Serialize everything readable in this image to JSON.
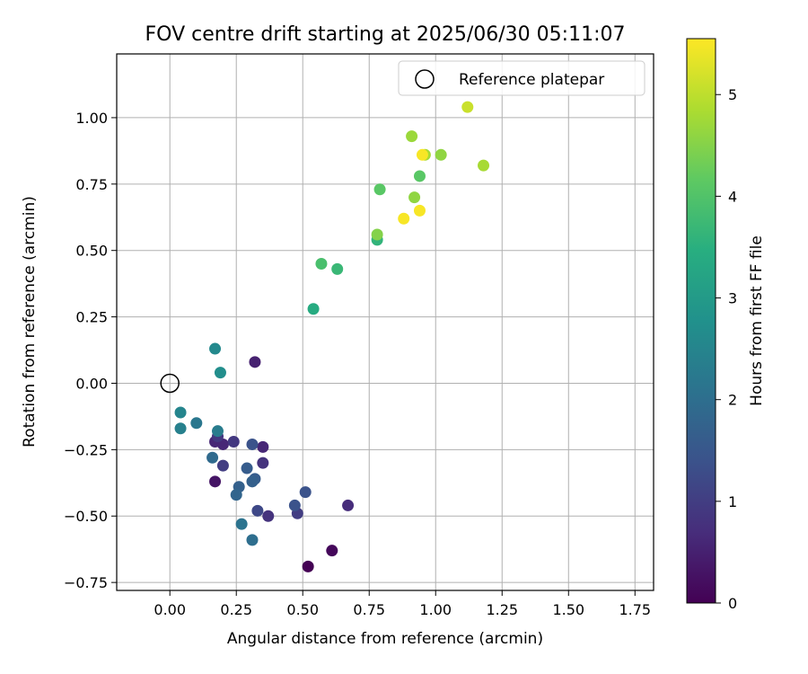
{
  "chart_data": {
    "type": "scatter",
    "title": "FOV centre drift starting at 2025/06/30 05:11:07",
    "xlabel": "Angular distance from reference (arcmin)",
    "ylabel": "Rotation from reference (arcmin)",
    "xlim": [
      -0.2,
      1.82
    ],
    "ylim": [
      -0.78,
      1.24
    ],
    "xticks": [
      "0.00",
      "0.25",
      "0.50",
      "0.75",
      "1.00",
      "1.25",
      "1.50",
      "1.75"
    ],
    "xtick_values": [
      0.0,
      0.25,
      0.5,
      0.75,
      1.0,
      1.25,
      1.5,
      1.75
    ],
    "yticks": [
      "−0.75",
      "−0.50",
      "−0.25",
      "0.00",
      "0.25",
      "0.50",
      "0.75",
      "1.00"
    ],
    "ytick_values": [
      -0.75,
      -0.5,
      -0.25,
      0.0,
      0.25,
      0.5,
      0.75,
      1.0
    ],
    "grid": true,
    "legend": {
      "placement": "top-right",
      "entries": [
        {
          "label": "Reference platepar",
          "marker": "open-circle"
        }
      ]
    },
    "reference_point": {
      "x": 0.0,
      "y": 0.0
    },
    "colorbar": {
      "label": "Hours from first FF file",
      "colormap": "viridis",
      "range": [
        0,
        5.55
      ],
      "ticks": [
        "0",
        "1",
        "2",
        "3",
        "4",
        "5"
      ],
      "tick_values": [
        0,
        1,
        2,
        3,
        4,
        5
      ]
    },
    "points": [
      {
        "x": 0.52,
        "y": -0.69,
        "hours": 0.0
      },
      {
        "x": 0.61,
        "y": -0.63,
        "hours": 0.1
      },
      {
        "x": 0.17,
        "y": -0.37,
        "hours": 0.3
      },
      {
        "x": 0.32,
        "y": 0.08,
        "hours": 0.5
      },
      {
        "x": 0.17,
        "y": -0.22,
        "hours": 0.6
      },
      {
        "x": 0.2,
        "y": -0.23,
        "hours": 0.6
      },
      {
        "x": 0.35,
        "y": -0.24,
        "hours": 0.6
      },
      {
        "x": 0.67,
        "y": -0.46,
        "hours": 0.7
      },
      {
        "x": 0.37,
        "y": -0.5,
        "hours": 0.8
      },
      {
        "x": 0.35,
        "y": -0.3,
        "hours": 0.8
      },
      {
        "x": 0.18,
        "y": -0.2,
        "hours": 0.9
      },
      {
        "x": 0.24,
        "y": -0.22,
        "hours": 0.9
      },
      {
        "x": 0.2,
        "y": -0.31,
        "hours": 1.0
      },
      {
        "x": 0.48,
        "y": -0.49,
        "hours": 1.0
      },
      {
        "x": 0.33,
        "y": -0.48,
        "hours": 1.2
      },
      {
        "x": 0.51,
        "y": -0.41,
        "hours": 1.4
      },
      {
        "x": 0.47,
        "y": -0.46,
        "hours": 1.4
      },
      {
        "x": 0.31,
        "y": -0.23,
        "hours": 1.4
      },
      {
        "x": 0.32,
        "y": -0.36,
        "hours": 1.6
      },
      {
        "x": 0.29,
        "y": -0.32,
        "hours": 1.6
      },
      {
        "x": 0.31,
        "y": -0.37,
        "hours": 1.7
      },
      {
        "x": 0.26,
        "y": -0.39,
        "hours": 1.7
      },
      {
        "x": 0.25,
        "y": -0.42,
        "hours": 1.8
      },
      {
        "x": 0.16,
        "y": -0.28,
        "hours": 1.9
      },
      {
        "x": 0.31,
        "y": -0.59,
        "hours": 2.0
      },
      {
        "x": 0.27,
        "y": -0.53,
        "hours": 2.1
      },
      {
        "x": 0.1,
        "y": -0.15,
        "hours": 2.2
      },
      {
        "x": 0.18,
        "y": -0.18,
        "hours": 2.3
      },
      {
        "x": 0.04,
        "y": -0.17,
        "hours": 2.4
      },
      {
        "x": 0.04,
        "y": -0.11,
        "hours": 2.5
      },
      {
        "x": 0.17,
        "y": 0.13,
        "hours": 2.6
      },
      {
        "x": 0.19,
        "y": 0.04,
        "hours": 2.7
      },
      {
        "x": 0.54,
        "y": 0.28,
        "hours": 3.4
      },
      {
        "x": 0.63,
        "y": 0.43,
        "hours": 3.7
      },
      {
        "x": 0.78,
        "y": 0.54,
        "hours": 3.6
      },
      {
        "x": 0.57,
        "y": 0.45,
        "hours": 3.9
      },
      {
        "x": 0.94,
        "y": 0.78,
        "hours": 4.1
      },
      {
        "x": 0.79,
        "y": 0.73,
        "hours": 4.1
      },
      {
        "x": 0.78,
        "y": 0.56,
        "hours": 4.5
      },
      {
        "x": 0.92,
        "y": 0.7,
        "hours": 4.6
      },
      {
        "x": 1.02,
        "y": 0.86,
        "hours": 4.6
      },
      {
        "x": 0.91,
        "y": 0.93,
        "hours": 4.7
      },
      {
        "x": 0.96,
        "y": 0.86,
        "hours": 4.8
      },
      {
        "x": 1.18,
        "y": 0.82,
        "hours": 4.8
      },
      {
        "x": 1.12,
        "y": 1.04,
        "hours": 5.1
      },
      {
        "x": 0.88,
        "y": 0.62,
        "hours": 5.5
      },
      {
        "x": 0.94,
        "y": 0.65,
        "hours": 5.5
      },
      {
        "x": 0.95,
        "y": 0.86,
        "hours": 5.5
      }
    ]
  }
}
